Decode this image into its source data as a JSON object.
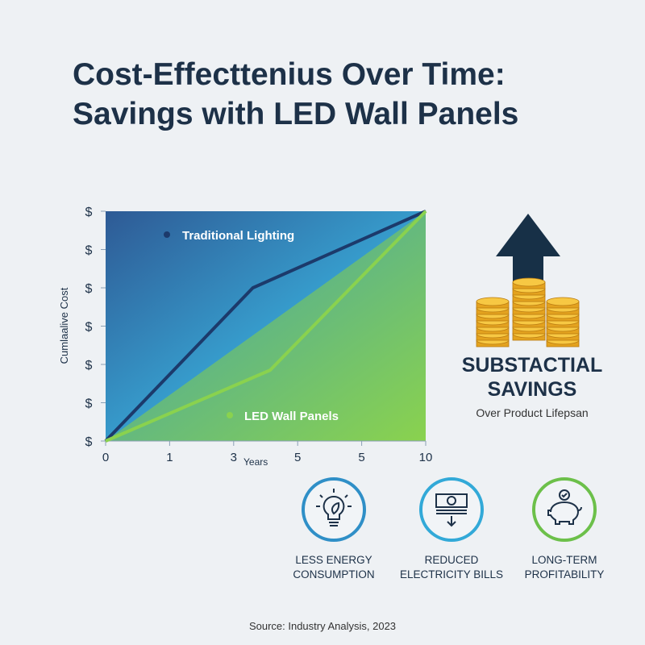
{
  "title_line1": "Cost-Effecttenius Over Time:",
  "title_line2": "Savings with LED Wall Panels",
  "chart_data": {
    "type": "line",
    "xlabel": "Years",
    "ylabel": "Cumlaalive Cost",
    "x_tick_labels": [
      "0",
      "1",
      "3",
      "5",
      "5",
      "10"
    ],
    "y_tick_labels": [
      "$",
      "$",
      "$",
      "$",
      "$",
      "$",
      "$"
    ],
    "x_range_tick_index": [
      0,
      5
    ],
    "y_range_tick_index": [
      0,
      6
    ],
    "grid": false,
    "legend_placement": "inside",
    "series": [
      {
        "name": "Traditional Lighting",
        "color": "#1c3a6b",
        "points": [
          [
            0,
            0
          ],
          [
            2.3,
            4.0
          ],
          [
            5,
            6
          ]
        ]
      },
      {
        "name": "LED Wall Panels",
        "color": "#8ad24e",
        "points": [
          [
            0,
            0
          ],
          [
            2.57,
            1.85
          ],
          [
            5,
            6
          ]
        ]
      }
    ]
  },
  "savings": {
    "title_line1": "SUBSTACTIAL",
    "title_line2": "SAVINGS",
    "subtitle": "Over Product Lifepsan"
  },
  "features": [
    {
      "line1": "LESS ENERGY",
      "line2": "CONSUMPTION",
      "icon": "lightbulb-leaf-icon"
    },
    {
      "line1": "REDUCED",
      "line2": "ELECTRICITY BILLS",
      "icon": "money-stack-down-icon"
    },
    {
      "line1": "LONG-TERM",
      "line2": "PROFITABILITY",
      "icon": "piggy-bank-check-icon"
    }
  ],
  "source": "Source: Industry Analysis, 2023"
}
